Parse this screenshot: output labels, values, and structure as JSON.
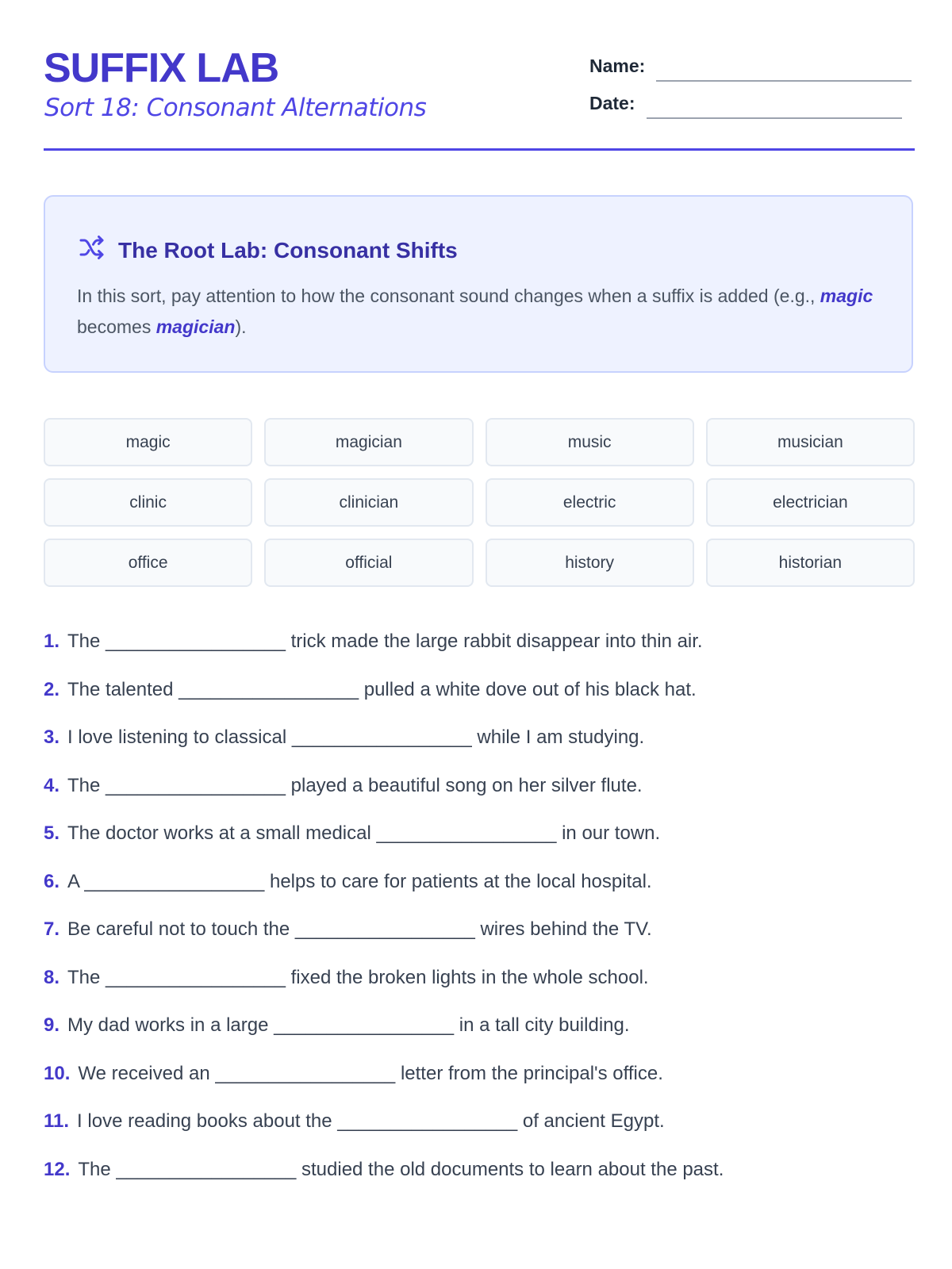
{
  "header": {
    "title": "SUFFIX LAB",
    "subtitle": "Sort 18: Consonant Alternations",
    "name_label": "Name:",
    "date_label": "Date:"
  },
  "info_box": {
    "icon": "shuffle-icon",
    "title": "The Root Lab: Consonant Shifts",
    "text_before": "In this sort, pay attention to how the consonant sound changes when a suffix is added (e.g., ",
    "example1": "magic",
    "text_middle": " becomes ",
    "example2": "magician",
    "text_after": ")."
  },
  "words": [
    "magic",
    "magician",
    "music",
    "musician",
    "clinic",
    "clinician",
    "electric",
    "electrician",
    "office",
    "official",
    "history",
    "historian"
  ],
  "blank": "_________________",
  "sentences": [
    {
      "num": "1.",
      "before": "The",
      "after": "trick made the large rabbit disappear into thin air."
    },
    {
      "num": "2.",
      "before": "The talented",
      "after": "pulled a white dove out of his black hat."
    },
    {
      "num": "3.",
      "before": "I love listening to classical",
      "after": "while I am studying."
    },
    {
      "num": "4.",
      "before": "The",
      "after": "played a beautiful song on her silver flute."
    },
    {
      "num": "5.",
      "before": "The doctor works at a small medical",
      "after": "in our town."
    },
    {
      "num": "6.",
      "before": "A",
      "after": "helps to care for patients at the local hospital."
    },
    {
      "num": "7.",
      "before": "Be careful not to touch the",
      "after": "wires behind the TV."
    },
    {
      "num": "8.",
      "before": "The",
      "after": "fixed the broken lights in the whole school."
    },
    {
      "num": "9.",
      "before": "My dad works in a large",
      "after": "in a tall city building."
    },
    {
      "num": "10.",
      "before": "We received an",
      "after": "letter from the principal's office."
    },
    {
      "num": "11.",
      "before": "I love reading books about the",
      "after": "of ancient Egypt."
    },
    {
      "num": "12.",
      "before": "The",
      "after": "studied the old documents to learn about the past."
    }
  ],
  "colors": {
    "accent": "#4338ca",
    "rule": "#4f46e5",
    "box_bg": "#eef2ff",
    "box_border": "#c7d2fe"
  }
}
